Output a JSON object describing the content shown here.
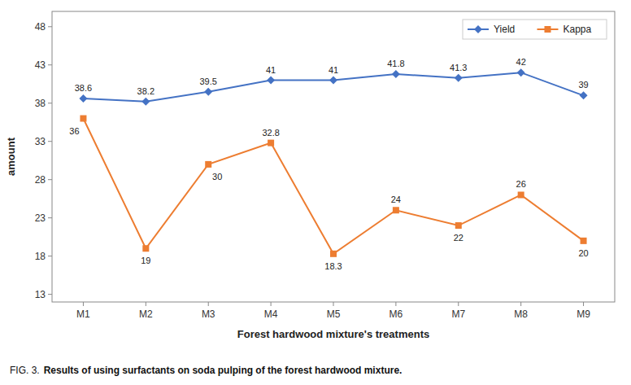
{
  "chart_data": {
    "type": "line",
    "categories": [
      "M1",
      "M2",
      "M3",
      "M4",
      "M5",
      "M6",
      "M7",
      "M8",
      "M9"
    ],
    "series": [
      {
        "name": "Yield",
        "color": "#4472C4",
        "marker": "diamond",
        "values": [
          38.6,
          38.2,
          39.5,
          41,
          41,
          41.8,
          41.3,
          42,
          39
        ]
      },
      {
        "name": "Kappa",
        "color": "#ED7D31",
        "marker": "square",
        "values": [
          36,
          19,
          30,
          32.8,
          18.3,
          24,
          22,
          26,
          20
        ]
      }
    ],
    "xlabel": "Forest hardwood mixture's treatments",
    "ylabel": "amount",
    "ylim": [
      12,
      50
    ],
    "yticks": [
      13,
      18,
      23,
      28,
      33,
      38,
      43,
      48
    ],
    "grid": false,
    "legend": "upper right",
    "data_labels": true,
    "caption_label": "FIG. 3.",
    "caption": "Results of using surfactants on soda pulping of the forest hardwood mixture."
  }
}
